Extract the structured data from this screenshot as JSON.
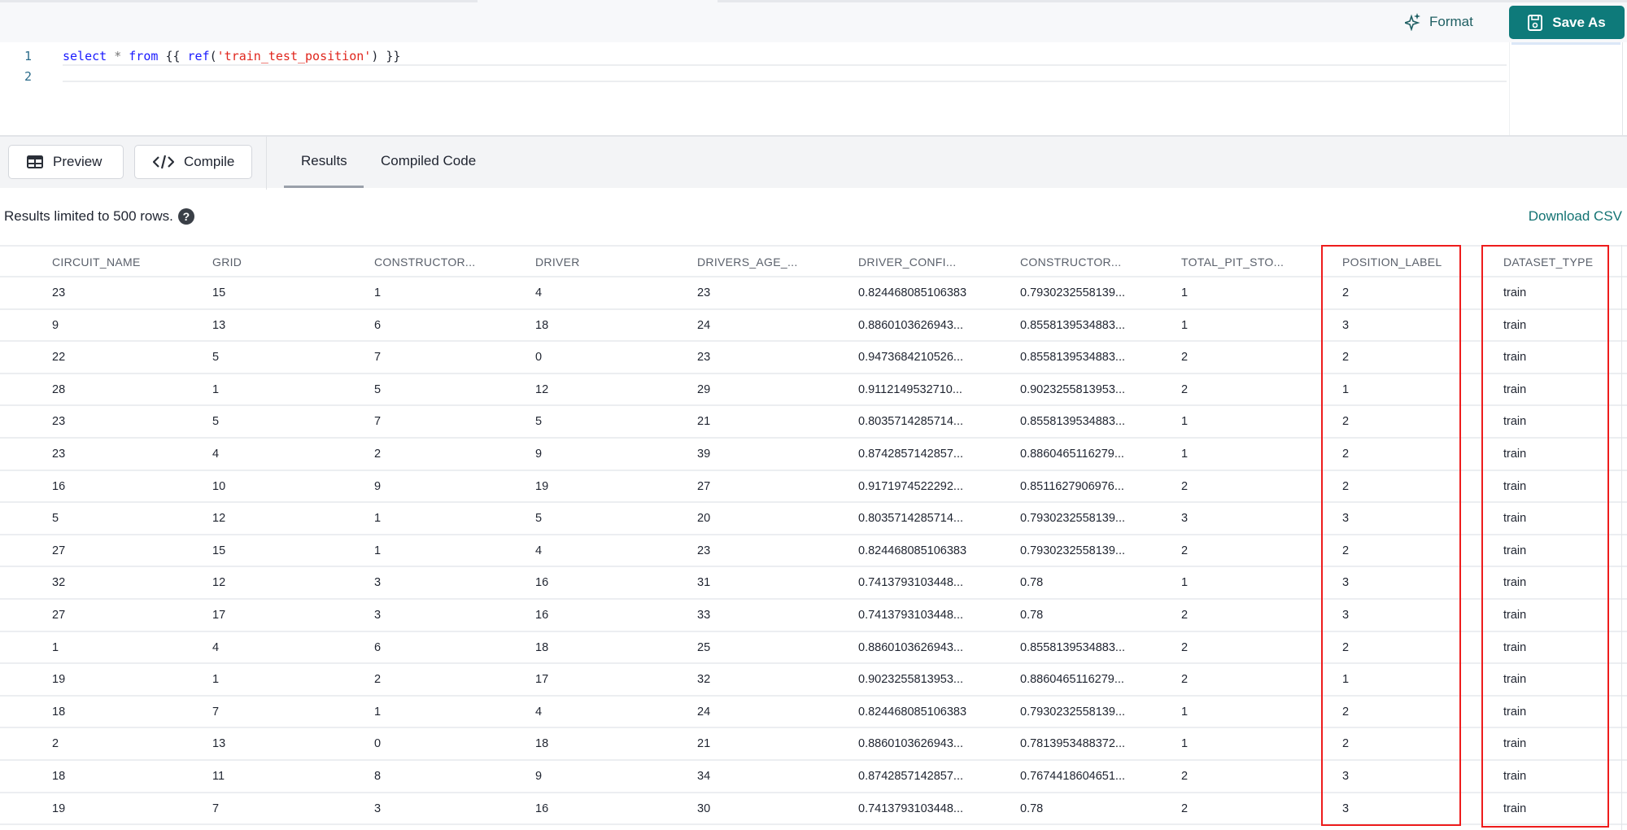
{
  "toolbar_top": {
    "format_label": "Format",
    "save_as_label": "Save As",
    "accent_color": "#0e7a7a"
  },
  "editor": {
    "line_numbers": [
      "1",
      "2"
    ],
    "tokens": {
      "select": "select",
      "star": "*",
      "from": "from",
      "open": "{{",
      "ref": "ref",
      "paren_open": "(",
      "model": "'train_test_position'",
      "paren_close": ")",
      "close": "}}"
    }
  },
  "actions": {
    "preview_label": "Preview",
    "compile_label": "Compile"
  },
  "tabs": [
    {
      "label": "Results",
      "active": true
    },
    {
      "label": "Compiled Code",
      "active": false
    }
  ],
  "results": {
    "info": "Results limited to 500 rows.",
    "download_label": "Download CSV"
  },
  "table": {
    "columns": [
      "CIRCUIT_NAME",
      "GRID",
      "CONSTRUCTOR...",
      "DRIVER",
      "DRIVERS_AGE_...",
      "DRIVER_CONFI...",
      "CONSTRUCTOR...",
      "TOTAL_PIT_STO...",
      "POSITION_LABEL",
      "DATASET_TYPE"
    ],
    "highlighted_columns": [
      "POSITION_LABEL",
      "DATASET_TYPE"
    ],
    "highlight_color": "#ee1c1c",
    "rows": [
      [
        "23",
        "15",
        "1",
        "4",
        "23",
        "0.824468085106383",
        "0.7930232558139...",
        "1",
        "2",
        "train"
      ],
      [
        "9",
        "13",
        "6",
        "18",
        "24",
        "0.8860103626943...",
        "0.8558139534883...",
        "1",
        "3",
        "train"
      ],
      [
        "22",
        "5",
        "7",
        "0",
        "23",
        "0.9473684210526...",
        "0.8558139534883...",
        "2",
        "2",
        "train"
      ],
      [
        "28",
        "1",
        "5",
        "12",
        "29",
        "0.9112149532710...",
        "0.9023255813953...",
        "2",
        "1",
        "train"
      ],
      [
        "23",
        "5",
        "7",
        "5",
        "21",
        "0.8035714285714...",
        "0.8558139534883...",
        "1",
        "2",
        "train"
      ],
      [
        "23",
        "4",
        "2",
        "9",
        "39",
        "0.8742857142857...",
        "0.8860465116279...",
        "1",
        "2",
        "train"
      ],
      [
        "16",
        "10",
        "9",
        "19",
        "27",
        "0.9171974522292...",
        "0.8511627906976...",
        "2",
        "2",
        "train"
      ],
      [
        "5",
        "12",
        "1",
        "5",
        "20",
        "0.8035714285714...",
        "0.7930232558139...",
        "3",
        "3",
        "train"
      ],
      [
        "27",
        "15",
        "1",
        "4",
        "23",
        "0.824468085106383",
        "0.7930232558139...",
        "2",
        "2",
        "train"
      ],
      [
        "32",
        "12",
        "3",
        "16",
        "31",
        "0.7413793103448...",
        "0.78",
        "1",
        "3",
        "train"
      ],
      [
        "27",
        "17",
        "3",
        "16",
        "33",
        "0.7413793103448...",
        "0.78",
        "2",
        "3",
        "train"
      ],
      [
        "1",
        "4",
        "6",
        "18",
        "25",
        "0.8860103626943...",
        "0.8558139534883...",
        "2",
        "2",
        "train"
      ],
      [
        "19",
        "1",
        "2",
        "17",
        "32",
        "0.9023255813953...",
        "0.8860465116279...",
        "2",
        "1",
        "train"
      ],
      [
        "18",
        "7",
        "1",
        "4",
        "24",
        "0.824468085106383",
        "0.7930232558139...",
        "1",
        "2",
        "train"
      ],
      [
        "2",
        "13",
        "0",
        "18",
        "21",
        "0.8860103626943...",
        "0.7813953488372...",
        "1",
        "2",
        "train"
      ],
      [
        "18",
        "11",
        "8",
        "9",
        "34",
        "0.8742857142857...",
        "0.7674418604651...",
        "2",
        "3",
        "train"
      ],
      [
        "19",
        "7",
        "3",
        "16",
        "30",
        "0.7413793103448...",
        "0.78",
        "2",
        "3",
        "train"
      ]
    ]
  }
}
